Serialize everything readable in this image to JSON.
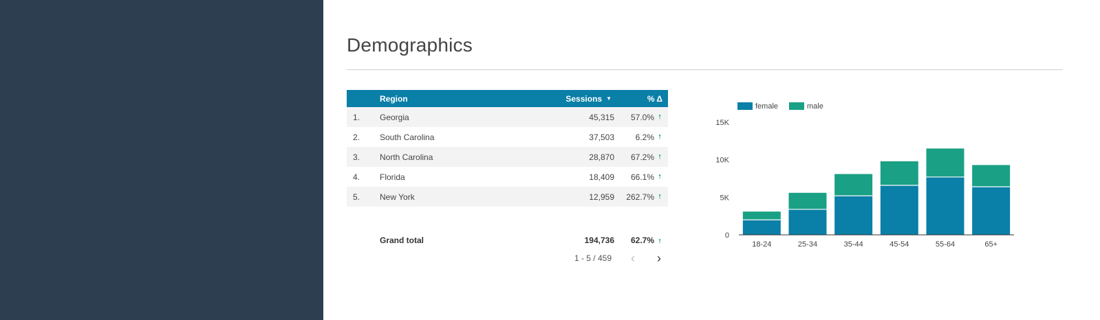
{
  "page": {
    "title": "Demographics"
  },
  "table": {
    "headers": {
      "region": "Region",
      "sessions": "Sessions",
      "sort_icon": "caret-down-icon",
      "pct_change": "% Δ"
    },
    "rows": [
      {
        "index": "1.",
        "region": "Georgia",
        "sessions": "45,315",
        "pct": "57.0%"
      },
      {
        "index": "2.",
        "region": "South Carolina",
        "sessions": "37,503",
        "pct": "6.2%"
      },
      {
        "index": "3.",
        "region": "North Carolina",
        "sessions": "28,870",
        "pct": "67.2%"
      },
      {
        "index": "4.",
        "region": "Florida",
        "sessions": "18,409",
        "pct": "66.1%"
      },
      {
        "index": "5.",
        "region": "New York",
        "sessions": "12,959",
        "pct": "262.7%"
      }
    ],
    "total": {
      "label": "Grand total",
      "sessions": "194,736",
      "pct": "62.7%"
    },
    "pager": {
      "text": "1 - 5 / 459"
    },
    "colors": {
      "header_bg": "#0a7fa7",
      "up_arrow": "#1a9e7e"
    }
  },
  "chart_data": {
    "type": "bar",
    "stacked": true,
    "categories": [
      "18-24",
      "25-34",
      "35-44",
      "45-54",
      "55-64",
      "65+"
    ],
    "series": [
      {
        "name": "female",
        "color": "#0a7fa7",
        "values": [
          2000,
          3400,
          5200,
          6600,
          7700,
          6400
        ]
      },
      {
        "name": "male",
        "color": "#1aa085",
        "values": [
          1100,
          2200,
          2900,
          3200,
          3800,
          2900
        ]
      }
    ],
    "yticks": [
      0,
      5000,
      10000,
      15000
    ],
    "ytick_labels": [
      "0",
      "5K",
      "10K",
      "15K"
    ],
    "ylim": [
      0,
      15000
    ],
    "legend": "top-left",
    "grid": false
  }
}
